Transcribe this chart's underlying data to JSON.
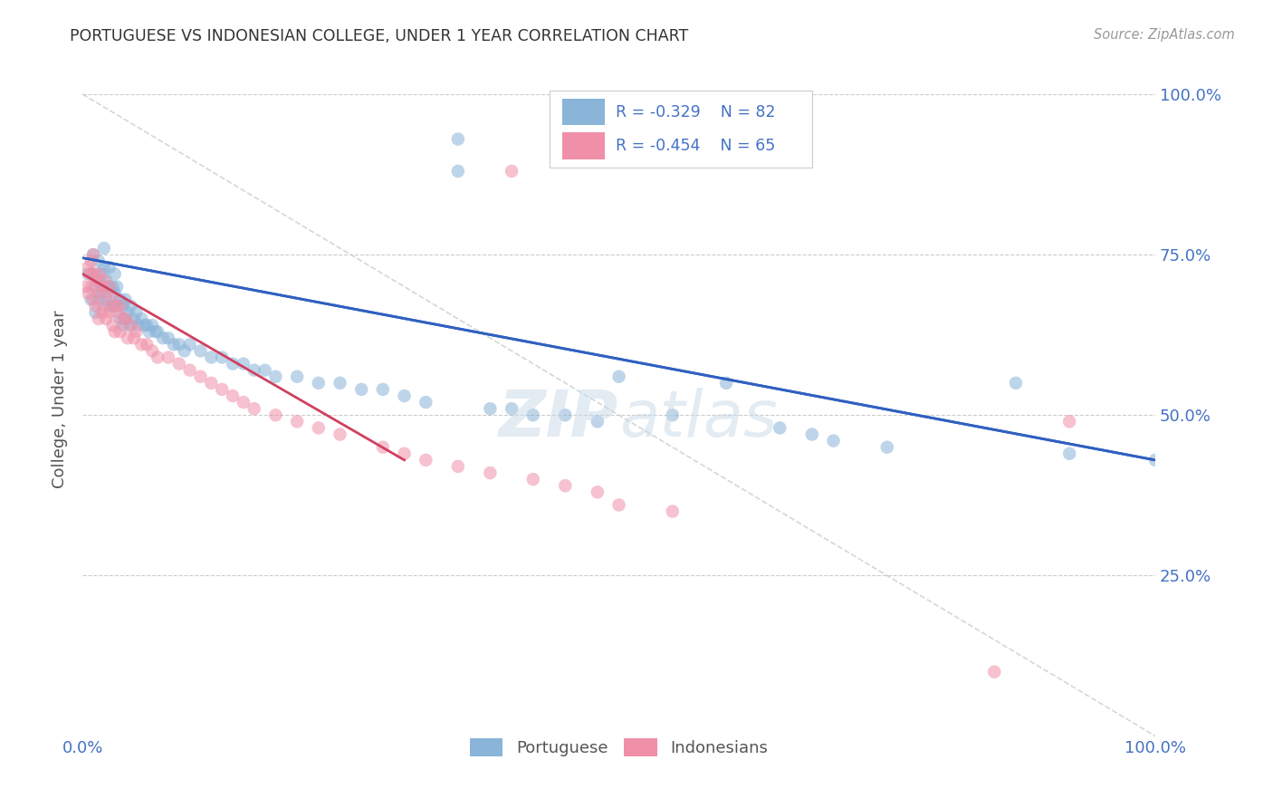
{
  "title": "PORTUGUESE VS INDONESIAN COLLEGE, UNDER 1 YEAR CORRELATION CHART",
  "source": "Source: ZipAtlas.com",
  "ylabel_text": "College, Under 1 year",
  "portuguese_color": "#8ab4d8",
  "indonesian_color": "#f090a8",
  "portuguese_line_color": "#3060c0",
  "indonesian_line_color": "#d04060",
  "diagonal_line_color": "#cccccc",
  "background_color": "#ffffff",
  "watermark_color": "#d0dce8",
  "tick_color": "#4472c4",
  "label_color": "#555555",
  "title_color": "#333333",
  "source_color": "#999999",
  "legend_border_color": "#cccccc",
  "legend_bg_color": "#ffffff",
  "portuguese_x": [
    0.005,
    0.008,
    0.01,
    0.01,
    0.012,
    0.012,
    0.015,
    0.015,
    0.015,
    0.018,
    0.018,
    0.02,
    0.02,
    0.02,
    0.022,
    0.022,
    0.025,
    0.025,
    0.025,
    0.028,
    0.028,
    0.03,
    0.03,
    0.032,
    0.032,
    0.035,
    0.035,
    0.038,
    0.038,
    0.04,
    0.04,
    0.042,
    0.045,
    0.045,
    0.048,
    0.05,
    0.052,
    0.055,
    0.058,
    0.06,
    0.062,
    0.065,
    0.068,
    0.07,
    0.075,
    0.08,
    0.085,
    0.09,
    0.095,
    0.1,
    0.11,
    0.12,
    0.13,
    0.14,
    0.15,
    0.16,
    0.17,
    0.18,
    0.2,
    0.22,
    0.24,
    0.26,
    0.28,
    0.3,
    0.32,
    0.35,
    0.35,
    0.38,
    0.4,
    0.42,
    0.45,
    0.48,
    0.5,
    0.55,
    0.6,
    0.65,
    0.68,
    0.7,
    0.75,
    0.87,
    0.92,
    1.0
  ],
  "portuguese_y": [
    0.72,
    0.68,
    0.75,
    0.72,
    0.7,
    0.66,
    0.74,
    0.71,
    0.68,
    0.72,
    0.69,
    0.76,
    0.73,
    0.7,
    0.71,
    0.68,
    0.73,
    0.7,
    0.67,
    0.7,
    0.67,
    0.72,
    0.69,
    0.7,
    0.67,
    0.68,
    0.65,
    0.67,
    0.64,
    0.68,
    0.65,
    0.66,
    0.67,
    0.64,
    0.65,
    0.66,
    0.64,
    0.65,
    0.64,
    0.64,
    0.63,
    0.64,
    0.63,
    0.63,
    0.62,
    0.62,
    0.61,
    0.61,
    0.6,
    0.61,
    0.6,
    0.59,
    0.59,
    0.58,
    0.58,
    0.57,
    0.57,
    0.56,
    0.56,
    0.55,
    0.55,
    0.54,
    0.54,
    0.53,
    0.52,
    0.93,
    0.88,
    0.51,
    0.51,
    0.5,
    0.5,
    0.49,
    0.56,
    0.5,
    0.55,
    0.48,
    0.47,
    0.46,
    0.45,
    0.55,
    0.44,
    0.43
  ],
  "indonesian_x": [
    0.003,
    0.005,
    0.005,
    0.007,
    0.008,
    0.008,
    0.01,
    0.01,
    0.01,
    0.012,
    0.012,
    0.015,
    0.015,
    0.015,
    0.018,
    0.018,
    0.02,
    0.02,
    0.022,
    0.022,
    0.025,
    0.025,
    0.028,
    0.028,
    0.03,
    0.03,
    0.032,
    0.035,
    0.035,
    0.038,
    0.04,
    0.042,
    0.045,
    0.048,
    0.05,
    0.055,
    0.06,
    0.065,
    0.07,
    0.08,
    0.09,
    0.1,
    0.11,
    0.12,
    0.13,
    0.14,
    0.15,
    0.16,
    0.18,
    0.2,
    0.22,
    0.24,
    0.28,
    0.3,
    0.32,
    0.35,
    0.38,
    0.4,
    0.42,
    0.45,
    0.48,
    0.5,
    0.55,
    0.85,
    0.92
  ],
  "indonesian_y": [
    0.7,
    0.73,
    0.69,
    0.72,
    0.74,
    0.7,
    0.75,
    0.72,
    0.68,
    0.71,
    0.67,
    0.72,
    0.69,
    0.65,
    0.7,
    0.66,
    0.71,
    0.67,
    0.69,
    0.65,
    0.7,
    0.66,
    0.68,
    0.64,
    0.67,
    0.63,
    0.66,
    0.67,
    0.63,
    0.65,
    0.65,
    0.62,
    0.64,
    0.62,
    0.63,
    0.61,
    0.61,
    0.6,
    0.59,
    0.59,
    0.58,
    0.57,
    0.56,
    0.55,
    0.54,
    0.53,
    0.52,
    0.51,
    0.5,
    0.49,
    0.48,
    0.47,
    0.45,
    0.44,
    0.43,
    0.42,
    0.41,
    0.88,
    0.4,
    0.39,
    0.38,
    0.36,
    0.35,
    0.1,
    0.49
  ],
  "port_line_x0": 0.0,
  "port_line_y0": 0.745,
  "port_line_x1": 1.0,
  "port_line_y1": 0.43,
  "indo_line_x0": 0.0,
  "indo_line_y0": 0.72,
  "indo_line_x1": 0.3,
  "indo_line_y1": 0.43,
  "xlim": [
    0.0,
    1.0
  ],
  "ylim": [
    0.0,
    1.05
  ],
  "yticks": [
    0.25,
    0.5,
    0.75,
    1.0
  ],
  "xticks": [
    0.0,
    1.0
  ],
  "legend_R1": "R = -0.329",
  "legend_N1": "N = 82",
  "legend_R2": "R = -0.454",
  "legend_N2": "N = 65"
}
